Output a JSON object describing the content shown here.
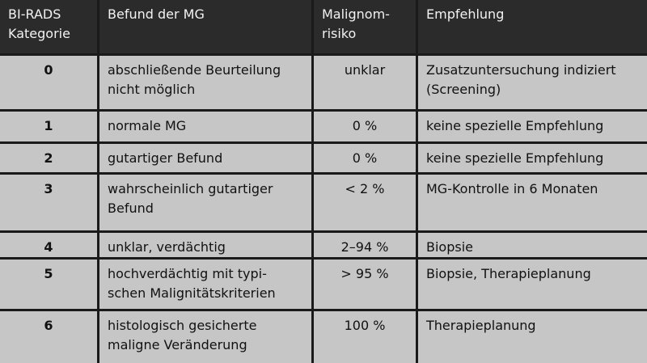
{
  "table": {
    "header": [
      [
        "BI-RADS",
        "Kategorie"
      ],
      [
        "Befund der MG"
      ],
      [
        "Malignom-",
        "risiko"
      ],
      [
        "Empfehlung"
      ]
    ],
    "rows": [
      [
        [
          "0"
        ],
        [
          "abschließende Beurteilung",
          "nicht möglich"
        ],
        [
          "unklar"
        ],
        [
          "Zusatzuntersuchung indiziert",
          "(Screening)"
        ]
      ],
      [
        [
          "1"
        ],
        [
          "normale MG"
        ],
        [
          "0 %"
        ],
        [
          "keine spezielle Empfehlung"
        ]
      ],
      [
        [
          "2"
        ],
        [
          "gutartiger Befund"
        ],
        [
          "0 %"
        ],
        [
          "keine spezielle Empfehlung"
        ]
      ],
      [
        [
          "3"
        ],
        [
          "wahrscheinlich gutartiger",
          "Befund"
        ],
        [
          "< 2 %"
        ],
        [
          "MG-Kontrolle in 6 Monaten"
        ]
      ],
      [
        [
          "4"
        ],
        [
          "unklar, verdächtig"
        ],
        [
          "2–94 %"
        ],
        [
          "Biopsie"
        ]
      ],
      [
        [
          "5"
        ],
        [
          "hochverdächtig mit typi-",
          "schen Malignitätskriterien"
        ],
        [
          "> 95 %"
        ],
        [
          "Biopsie, Therapieplanung"
        ]
      ],
      [
        [
          "6"
        ],
        [
          "histologisch gesicherte",
          "maligne Veränderung"
        ],
        [
          "100 %"
        ],
        [
          "Therapieplanung"
        ]
      ]
    ]
  }
}
